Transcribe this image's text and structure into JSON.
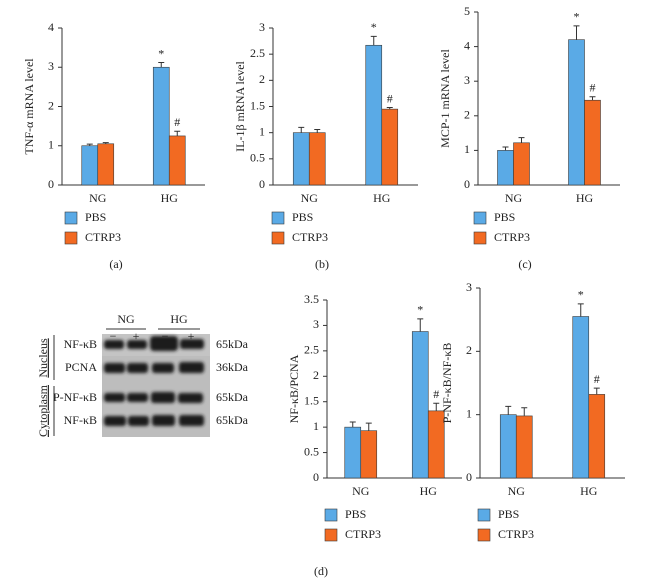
{
  "chart_data": [
    {
      "type": "bar",
      "ylabel": "TNF-α mRNA level",
      "categories": [
        "NG",
        "HG"
      ],
      "series": [
        {
          "name": "PBS",
          "color": "#5aaae6",
          "values": [
            1.0,
            3.0
          ],
          "errors": [
            0.04,
            0.12
          ],
          "annotations": [
            null,
            "*"
          ]
        },
        {
          "name": "CTRP3",
          "color": "#f26a22",
          "values": [
            1.05,
            1.25
          ],
          "errors": [
            0.03,
            0.12
          ],
          "annotations": [
            null,
            "#"
          ]
        }
      ],
      "ylim": [
        0,
        4
      ],
      "yticks": [
        0,
        1,
        2,
        3,
        4
      ]
    },
    {
      "type": "bar",
      "ylabel": "IL-1β mRNA level",
      "categories": [
        "NG",
        "HG"
      ],
      "series": [
        {
          "name": "PBS",
          "color": "#5aaae6",
          "values": [
            1.0,
            2.67
          ],
          "errors": [
            0.1,
            0.17
          ],
          "annotations": [
            null,
            "*"
          ]
        },
        {
          "name": "CTRP3",
          "color": "#f26a22",
          "values": [
            1.0,
            1.45
          ],
          "errors": [
            0.06,
            0.03
          ],
          "annotations": [
            null,
            "#"
          ]
        }
      ],
      "ylim": [
        0,
        3
      ],
      "yticks": [
        0,
        0.5,
        1,
        1.5,
        2,
        2.5,
        3
      ]
    },
    {
      "type": "bar",
      "ylabel": "MCP-1 mRNA level",
      "categories": [
        "NG",
        "HG"
      ],
      "series": [
        {
          "name": "PBS",
          "color": "#5aaae6",
          "values": [
            1.0,
            4.2
          ],
          "errors": [
            0.1,
            0.4
          ],
          "annotations": [
            null,
            "*"
          ]
        },
        {
          "name": "CTRP3",
          "color": "#f26a22",
          "values": [
            1.22,
            2.45
          ],
          "errors": [
            0.15,
            0.1
          ],
          "annotations": [
            null,
            "#"
          ]
        }
      ],
      "ylim": [
        0,
        5
      ],
      "yticks": [
        0,
        1,
        2,
        3,
        4,
        5
      ]
    },
    {
      "type": "bar",
      "ylabel": "NF-κB/PCNA",
      "categories": [
        "NG",
        "HG"
      ],
      "series": [
        {
          "name": "PBS",
          "color": "#5aaae6",
          "values": [
            1.0,
            2.88
          ],
          "errors": [
            0.1,
            0.25
          ],
          "annotations": [
            null,
            "*"
          ]
        },
        {
          "name": "CTRP3",
          "color": "#f26a22",
          "values": [
            0.93,
            1.32
          ],
          "errors": [
            0.15,
            0.15
          ],
          "annotations": [
            null,
            "#"
          ]
        }
      ],
      "ylim": [
        0,
        3.5
      ],
      "yticks": [
        0,
        0.5,
        1,
        1.5,
        2,
        2.5,
        3,
        3.5
      ]
    },
    {
      "type": "bar",
      "ylabel": "P-NF-κB/NF-κB",
      "categories": [
        "NG",
        "HG"
      ],
      "series": [
        {
          "name": "PBS",
          "color": "#5aaae6",
          "values": [
            1.0,
            2.55
          ],
          "errors": [
            0.13,
            0.2
          ],
          "annotations": [
            null,
            "*"
          ]
        },
        {
          "name": "CTRP3",
          "color": "#f26a22",
          "values": [
            0.98,
            1.32
          ],
          "errors": [
            0.13,
            0.1
          ],
          "annotations": [
            null,
            "#"
          ]
        }
      ],
      "ylim": [
        0,
        3
      ],
      "yticks": [
        0,
        1,
        2,
        3
      ]
    }
  ],
  "blot": {
    "groups": [
      "NG",
      "HG"
    ],
    "lanes": [
      "−",
      "+",
      "−",
      "+"
    ],
    "sections": [
      {
        "name": "Nucleus",
        "rows": [
          {
            "protein": "NF-κB",
            "size": "65kDa"
          },
          {
            "protein": "PCNA",
            "size": "36kDa"
          }
        ]
      },
      {
        "name": "Cytoplasm",
        "rows": [
          {
            "protein": "P-NF-κB",
            "size": "65kDa"
          },
          {
            "protein": "NF-κB",
            "size": "65kDa"
          }
        ]
      }
    ]
  },
  "panel_labels": [
    "(a)",
    "(b)",
    "(c)",
    "(d)"
  ]
}
